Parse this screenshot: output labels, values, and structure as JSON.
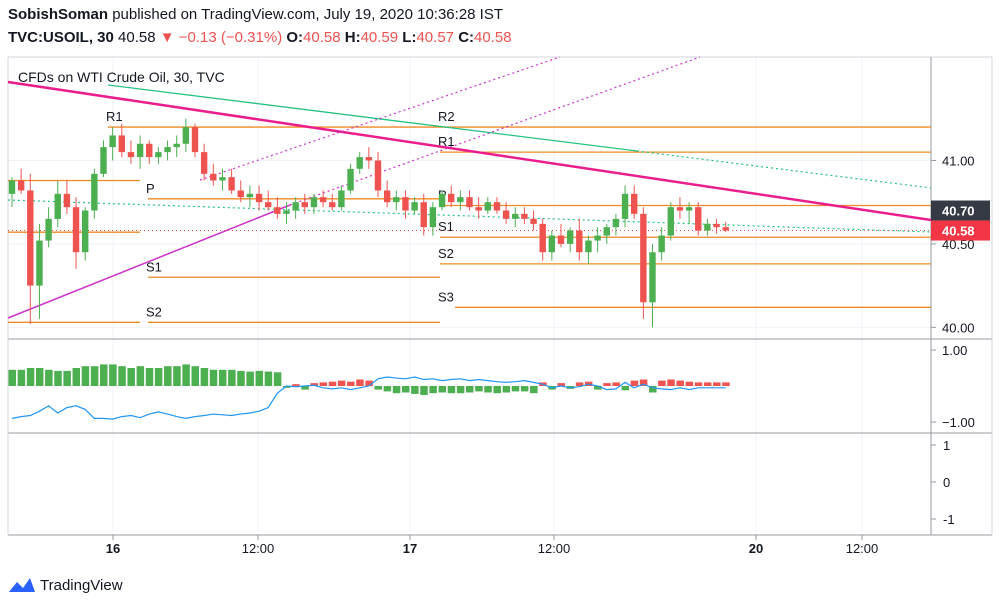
{
  "header": {
    "user": "SobishSoman",
    "published_text": "published on TradingView.com, July 19, 2020 10:36:28 IST",
    "symbol": "TVC:USOIL, 30",
    "last": "40.58",
    "change_arrow": "▼",
    "change": "−0.13 (−0.31%)",
    "o_label": "O:",
    "o_value": "40.58",
    "h_label": "H:",
    "h_value": "40.59",
    "l_label": "L:",
    "l_value": "40.57",
    "c_label": "C:",
    "c_value": "40.58"
  },
  "footer": {
    "brand": "TradingView"
  },
  "colors": {
    "up": "#4caf50",
    "down": "#ef5350",
    "pivot": "#f08a24",
    "trend_pink": "#e91e8c",
    "trend_green": "#26c281",
    "channel_magenta": "#cc33cc",
    "oscillator_line": "#2196f3",
    "price_badge": "#f23645",
    "dark_badge": "#363a45"
  },
  "chart_data": {
    "type": "candlestick",
    "title": "CFDs on WTI Crude Oil, 30, TVC",
    "y_ticks": [
      "41.00",
      "40.50",
      "40.00"
    ],
    "price_labels": {
      "dark": "40.70",
      "last": "40.58"
    },
    "x_ticks": [
      "16",
      "12:00",
      "17",
      "12:00",
      "20",
      "12:00"
    ],
    "ylim": [
      39.93,
      41.62
    ],
    "candles": [
      [
        40.8,
        40.9,
        40.72,
        40.88
      ],
      [
        40.88,
        40.95,
        40.8,
        40.82
      ],
      [
        40.82,
        40.92,
        40.02,
        40.25
      ],
      [
        40.25,
        40.62,
        40.05,
        40.52
      ],
      [
        40.52,
        40.72,
        40.48,
        40.65
      ],
      [
        40.65,
        40.88,
        40.6,
        40.8
      ],
      [
        40.8,
        40.88,
        40.68,
        40.72
      ],
      [
        40.72,
        40.78,
        40.35,
        40.45
      ],
      [
        40.45,
        40.72,
        40.4,
        40.7
      ],
      [
        40.7,
        40.95,
        40.65,
        40.92
      ],
      [
        40.92,
        41.12,
        40.9,
        41.08
      ],
      [
        41.08,
        41.2,
        41.0,
        41.15
      ],
      [
        41.15,
        41.22,
        41.02,
        41.05
      ],
      [
        41.05,
        41.12,
        40.98,
        41.02
      ],
      [
        41.02,
        41.15,
        40.95,
        41.1
      ],
      [
        41.1,
        41.12,
        40.98,
        41.02
      ],
      [
        41.02,
        41.08,
        40.98,
        41.05
      ],
      [
        41.05,
        41.12,
        41.0,
        41.08
      ],
      [
        41.08,
        41.15,
        41.02,
        41.1
      ],
      [
        41.1,
        41.25,
        41.05,
        41.2
      ],
      [
        41.2,
        41.22,
        41.02,
        41.05
      ],
      [
        41.05,
        41.1,
        40.88,
        40.92
      ],
      [
        40.92,
        40.98,
        40.85,
        40.88
      ],
      [
        40.88,
        40.95,
        40.82,
        40.9
      ],
      [
        40.9,
        40.95,
        40.8,
        40.82
      ],
      [
        40.82,
        40.88,
        40.75,
        40.78
      ],
      [
        40.78,
        40.85,
        40.72,
        40.8
      ],
      [
        40.8,
        40.85,
        40.7,
        40.75
      ],
      [
        40.75,
        40.82,
        40.7,
        40.72
      ],
      [
        40.72,
        40.78,
        40.65,
        40.68
      ],
      [
        40.68,
        40.75,
        40.62,
        40.7
      ],
      [
        40.7,
        40.78,
        40.65,
        40.75
      ],
      [
        40.75,
        40.8,
        40.68,
        40.72
      ],
      [
        40.72,
        40.8,
        40.68,
        40.78
      ],
      [
        40.78,
        40.82,
        40.72,
        40.75
      ],
      [
        40.75,
        40.8,
        40.7,
        40.72
      ],
      [
        40.72,
        40.85,
        40.7,
        40.82
      ],
      [
        40.82,
        40.98,
        40.8,
        40.95
      ],
      [
        40.95,
        41.05,
        40.92,
        41.02
      ],
      [
        41.02,
        41.08,
        40.95,
        41.0
      ],
      [
        41.0,
        41.05,
        40.78,
        40.82
      ],
      [
        40.82,
        40.88,
        40.72,
        40.75
      ],
      [
        40.75,
        40.82,
        40.7,
        40.78
      ],
      [
        40.78,
        40.82,
        40.65,
        40.7
      ],
      [
        40.7,
        40.78,
        40.68,
        40.75
      ],
      [
        40.75,
        40.8,
        40.55,
        40.6
      ],
      [
        40.6,
        40.75,
        40.55,
        40.72
      ],
      [
        40.72,
        40.82,
        40.7,
        40.8
      ],
      [
        40.8,
        40.85,
        40.72,
        40.75
      ],
      [
        40.75,
        40.82,
        40.7,
        40.78
      ],
      [
        40.78,
        40.82,
        40.7,
        40.72
      ],
      [
        40.72,
        40.78,
        40.65,
        40.7
      ],
      [
        40.7,
        40.78,
        40.68,
        40.75
      ],
      [
        40.75,
        40.78,
        40.68,
        40.7
      ],
      [
        40.7,
        40.75,
        40.62,
        40.65
      ],
      [
        40.65,
        40.72,
        40.6,
        40.68
      ],
      [
        40.68,
        40.72,
        40.62,
        40.65
      ],
      [
        40.65,
        40.7,
        40.58,
        40.62
      ],
      [
        40.62,
        40.65,
        40.4,
        40.45
      ],
      [
        40.45,
        40.58,
        40.4,
        40.55
      ],
      [
        40.55,
        40.62,
        40.48,
        40.5
      ],
      [
        40.5,
        40.6,
        40.45,
        40.58
      ],
      [
        40.58,
        40.65,
        40.4,
        40.45
      ],
      [
        40.45,
        40.55,
        40.38,
        40.52
      ],
      [
        40.52,
        40.6,
        40.45,
        40.55
      ],
      [
        40.55,
        40.62,
        40.5,
        40.6
      ],
      [
        40.6,
        40.68,
        40.55,
        40.65
      ],
      [
        40.65,
        40.85,
        40.6,
        40.8
      ],
      [
        40.8,
        40.85,
        40.65,
        40.68
      ],
      [
        40.68,
        40.72,
        40.05,
        40.15
      ],
      [
        40.15,
        40.5,
        40.0,
        40.45
      ],
      [
        40.45,
        40.6,
        40.4,
        40.55
      ],
      [
        40.55,
        40.75,
        40.52,
        40.72
      ],
      [
        40.72,
        40.78,
        40.65,
        40.7
      ],
      [
        40.7,
        40.75,
        40.62,
        40.72
      ],
      [
        40.72,
        40.75,
        40.55,
        40.58
      ],
      [
        40.58,
        40.65,
        40.55,
        40.62
      ],
      [
        40.62,
        40.65,
        40.56,
        40.6
      ],
      [
        40.6,
        40.63,
        40.57,
        40.58
      ]
    ],
    "pivot_levels": [
      {
        "label": "R2",
        "value": 41.2
      },
      {
        "label": "R1",
        "value": 41.05
      },
      {
        "label": "P",
        "value": 40.73
      },
      {
        "label": "S1",
        "value": 40.54
      },
      {
        "label": "S2",
        "value": 40.38
      },
      {
        "label": "S3",
        "value": 40.12
      },
      {
        "label": "R1",
        "value": 41.2
      },
      {
        "label": "P",
        "value": 40.77
      },
      {
        "label": "S1",
        "value": 40.3
      },
      {
        "label": "S2",
        "value": 40.03
      }
    ],
    "oscillator": {
      "ticks": [
        "1.00",
        "−1.00"
      ],
      "ylim": [
        -1.25,
        1.25
      ],
      "histogram": [
        0.45,
        0.45,
        0.5,
        0.5,
        0.45,
        0.42,
        0.42,
        0.5,
        0.55,
        0.55,
        0.6,
        0.6,
        0.55,
        0.5,
        0.55,
        0.5,
        0.5,
        0.55,
        0.55,
        0.6,
        0.55,
        0.5,
        0.45,
        0.45,
        0.45,
        0.42,
        0.4,
        0.42,
        0.4,
        0.38,
        -0.05,
        0.05,
        -0.1,
        0.08,
        0.1,
        0.12,
        0.15,
        0.12,
        0.18,
        0.15,
        -0.1,
        -0.15,
        -0.2,
        -0.18,
        -0.22,
        -0.25,
        -0.2,
        -0.18,
        -0.2,
        -0.2,
        -0.18,
        -0.15,
        -0.18,
        -0.2,
        -0.18,
        -0.15,
        -0.15,
        -0.2,
        0.1,
        -0.1,
        0.08,
        -0.08,
        0.1,
        0.12,
        -0.1,
        0.08,
        0.1,
        -0.12,
        0.15,
        0.18,
        -0.18,
        0.15,
        0.18,
        0.15,
        0.12,
        0.1,
        0.1,
        0.1,
        0.1
      ],
      "line": [
        -0.9,
        -0.85,
        -0.82,
        -0.7,
        -0.55,
        -0.75,
        -0.6,
        -0.55,
        -0.65,
        -0.9,
        -0.9,
        -0.92,
        -0.85,
        -0.82,
        -0.88,
        -0.78,
        -0.72,
        -0.78,
        -0.85,
        -0.9,
        -0.85,
        -0.82,
        -0.78,
        -0.8,
        -0.82,
        -0.78,
        -0.75,
        -0.7,
        -0.6,
        -0.2,
        0.0,
        -0.02,
        0.0,
        0.02,
        -0.05,
        -0.08,
        -0.05,
        -0.1,
        -0.05,
        0.0,
        0.2,
        0.25,
        0.22,
        0.2,
        0.25,
        0.18,
        0.2,
        0.15,
        0.18,
        0.2,
        0.15,
        0.18,
        0.15,
        0.12,
        0.1,
        0.12,
        0.15,
        0.1,
        0.05,
        -0.05,
        0.0,
        -0.05,
        -0.02,
        0.05,
        0.0,
        -0.1,
        -0.08,
        0.1,
        -0.05,
        0.05,
        -0.05,
        -0.08,
        -0.1,
        -0.05,
        -0.1,
        -0.05,
        -0.05,
        -0.05,
        -0.05
      ]
    },
    "osc2": {
      "ticks": [
        "1",
        "0",
        "-1"
      ]
    }
  }
}
